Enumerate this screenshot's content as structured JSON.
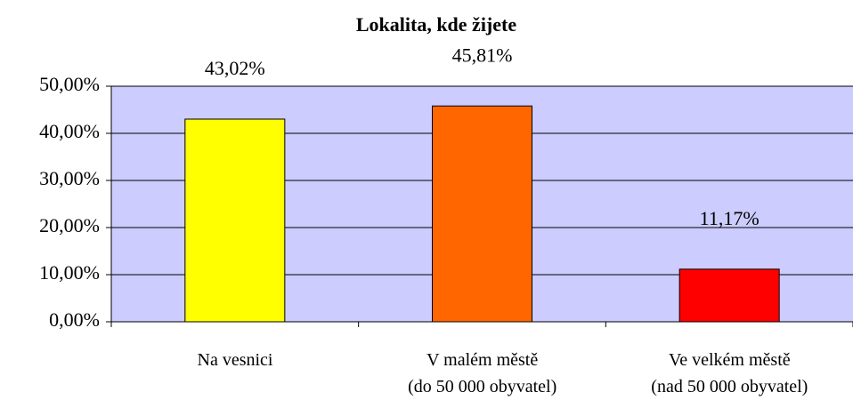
{
  "chart_data": {
    "type": "bar",
    "title": "Lokalita, kde žijete",
    "categories": [
      "Na vesnici",
      "V malém městě\n(do 50 000 obyvatel)",
      "Ve velkém městě\n(nad 50 000 obyvatel)"
    ],
    "values": [
      43.02,
      45.81,
      11.17
    ],
    "value_labels": [
      "43,02%",
      "45,81%",
      "11,17%"
    ],
    "colors": [
      "#ffff00",
      "#ff6600",
      "#ff0000"
    ],
    "ylim": [
      0,
      50
    ],
    "yticks": [
      {
        "value": 0,
        "label": "0,00%"
      },
      {
        "value": 10,
        "label": "10,00%"
      },
      {
        "value": 20,
        "label": "20,00%"
      },
      {
        "value": 30,
        "label": "30,00%"
      },
      {
        "value": 40,
        "label": "40,00%"
      },
      {
        "value": 50,
        "label": "50,00%"
      }
    ],
    "grid": true,
    "background": "#ccccff"
  }
}
